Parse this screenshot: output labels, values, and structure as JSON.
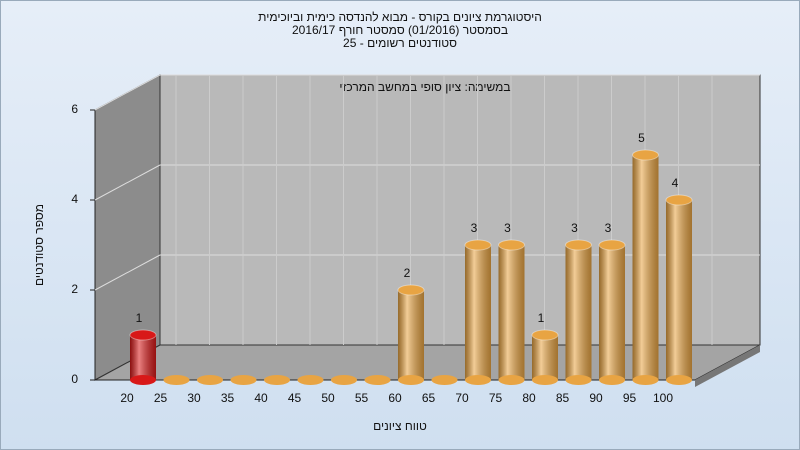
{
  "chart_data": {
    "type": "bar",
    "title": [
      "היסטוגרמת ציונים בקורס - מבוא להנדסה כימית וביוכימית",
      "בסמסטר  (01/2016)  סמסטר חורף 2016/17",
      "סטודנטים רשומים - 25"
    ],
    "annotation": "במשימה: ציון סופי במחשב המרכזי",
    "x_label": "טווח ציונים",
    "y_label": "מספר סטודנטים",
    "categories": [
      "20",
      "25",
      "30",
      "35",
      "40",
      "45",
      "50",
      "55",
      "60",
      "65",
      "70",
      "75",
      "80",
      "85",
      "90",
      "95",
      "100"
    ],
    "values": [
      1,
      0,
      0,
      0,
      0,
      0,
      0,
      0,
      2,
      0,
      3,
      3,
      1,
      3,
      3,
      5,
      4
    ],
    "colors": [
      "#d81818",
      "#e8a443",
      "#e8a443",
      "#e8a443",
      "#e8a443",
      "#e8a443",
      "#e8a443",
      "#e8a443",
      "#e8a443",
      "#e8a443",
      "#e8a443",
      "#e8a443",
      "#e8a443",
      "#e8a443",
      "#e8a443",
      "#e8a443",
      "#e8a443"
    ],
    "ylim": [
      0,
      6
    ],
    "yticks": [
      0,
      2,
      4,
      6
    ],
    "grid": true
  }
}
